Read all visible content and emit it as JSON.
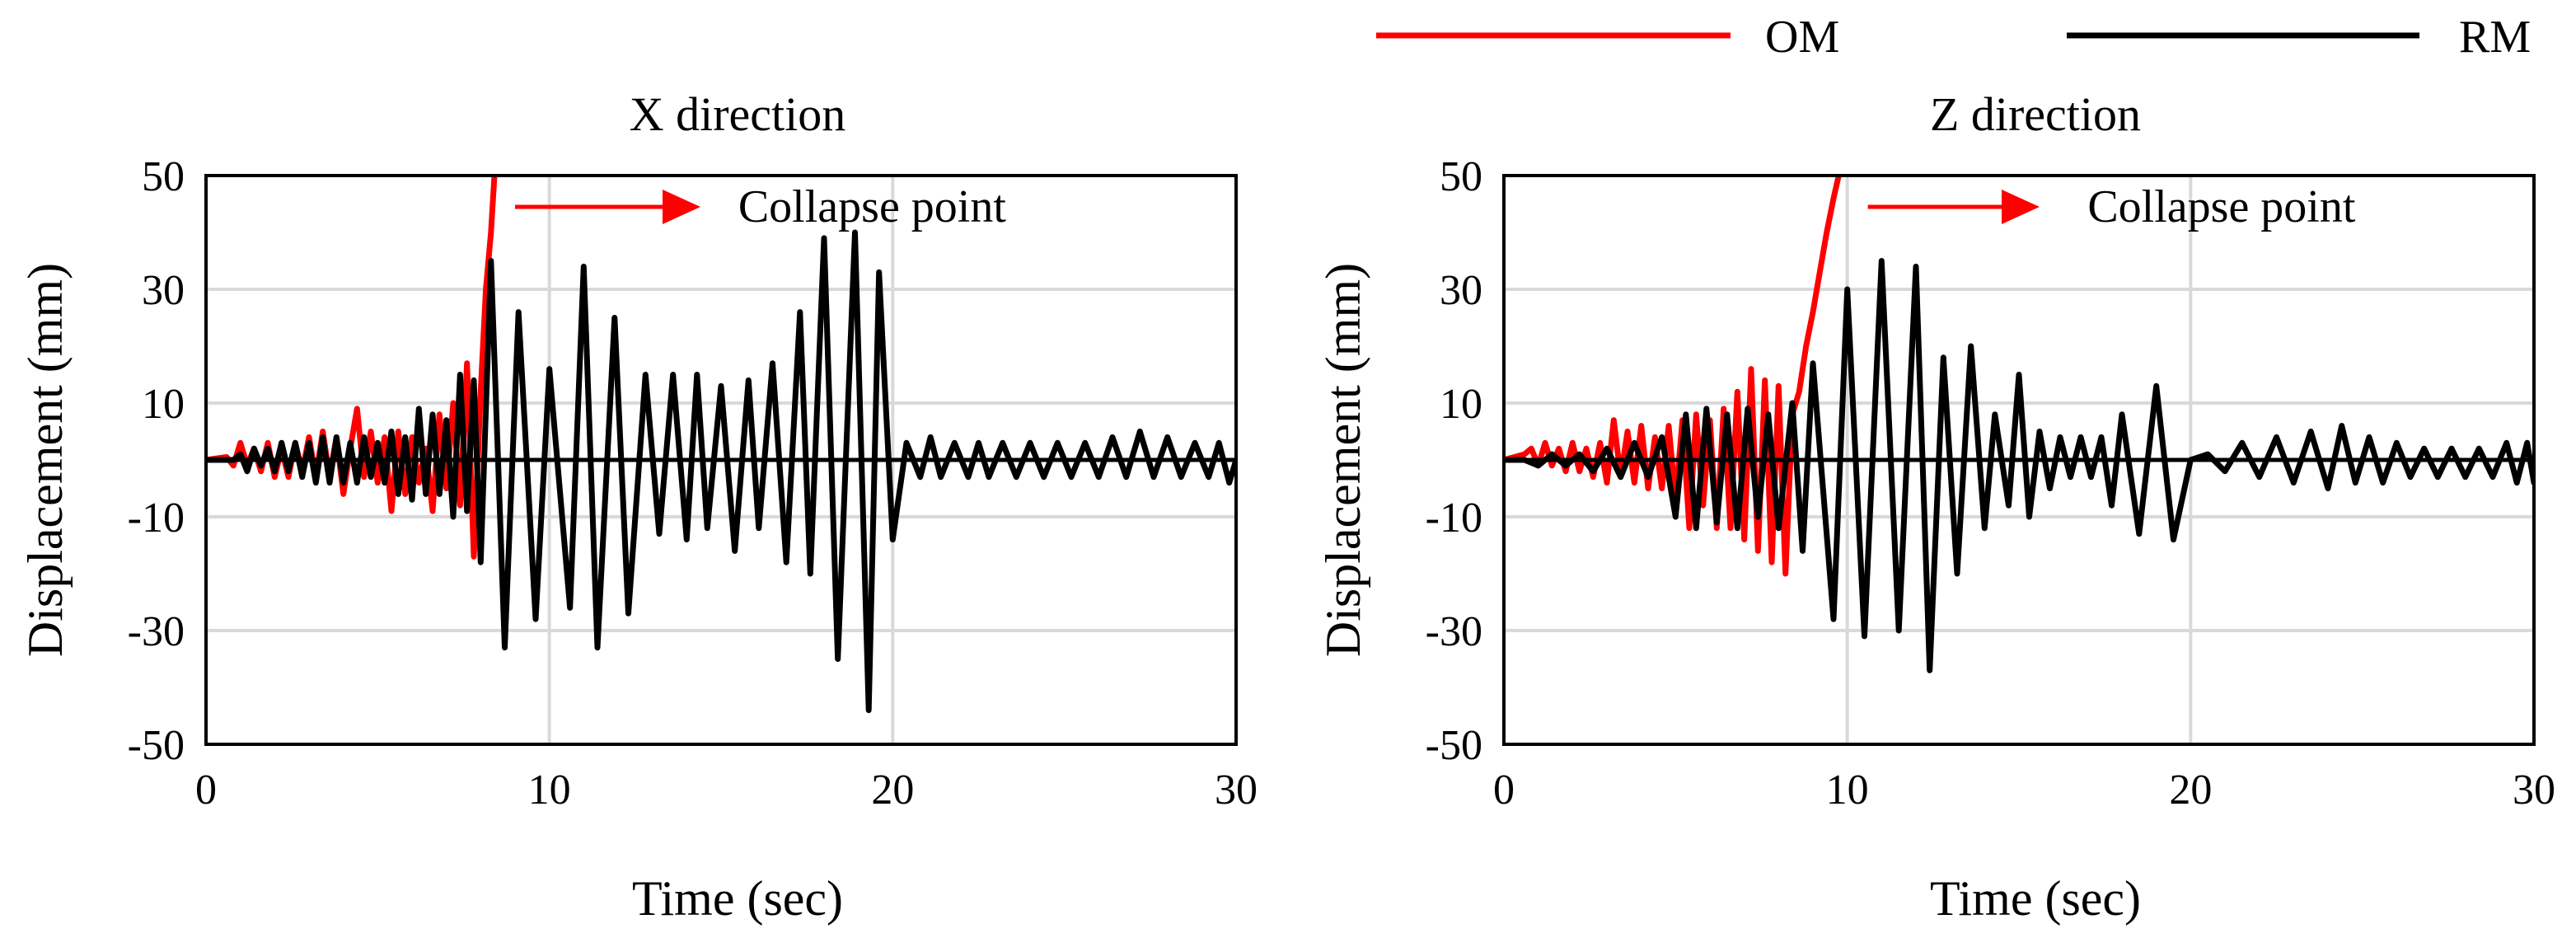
{
  "legend": {
    "items": [
      {
        "label": "OM",
        "color": "#ff0000"
      },
      {
        "label": "RM",
        "color": "#000000"
      }
    ]
  },
  "chart_data": [
    {
      "type": "line",
      "title": "X direction",
      "xlabel": "Time (sec)",
      "ylabel": "Displacement (mm)",
      "xlim": [
        0,
        30
      ],
      "ylim": [
        -50,
        50
      ],
      "xticks": [
        0,
        10,
        20,
        30
      ],
      "yticks": [
        -50,
        -30,
        -10,
        10,
        30,
        50
      ],
      "grid": true,
      "annotation": {
        "text": "Collapse point",
        "arrow_color": "#ff0000",
        "arrow_from": [
          9.0,
          44.5
        ],
        "arrow_to": [
          14.4,
          44.5
        ],
        "text_at": [
          15.5,
          44.5
        ]
      },
      "series": [
        {
          "name": "OM",
          "color": "#ff0000",
          "x": [
            0,
            0.6,
            0.8,
            1.0,
            1.2,
            1.4,
            1.6,
            1.8,
            2.0,
            2.2,
            2.4,
            2.6,
            2.8,
            3.0,
            3.2,
            3.4,
            3.6,
            3.8,
            4.0,
            4.2,
            4.4,
            4.6,
            4.8,
            5.0,
            5.2,
            5.4,
            5.6,
            5.8,
            6.0,
            6.2,
            6.4,
            6.6,
            6.8,
            7.0,
            7.2,
            7.4,
            7.6,
            7.8,
            8.0,
            8.15,
            8.3,
            8.4
          ],
          "y": [
            0,
            0.5,
            -1,
            3,
            -1,
            2,
            -2,
            3,
            -3,
            2,
            -3,
            3,
            -2,
            4,
            -3,
            5,
            -3,
            4,
            -6,
            2,
            9,
            -3,
            5,
            -4,
            4,
            -9,
            5,
            -6,
            4,
            -4,
            2,
            -9,
            8,
            -5,
            10,
            -8,
            17,
            -17,
            12,
            30,
            40,
            50
          ]
        },
        {
          "name": "RM",
          "color": "#000000",
          "x": [
            0,
            0.8,
            1.0,
            1.2,
            1.4,
            1.6,
            1.8,
            2.0,
            2.2,
            2.4,
            2.6,
            2.8,
            3.0,
            3.2,
            3.4,
            3.6,
            3.8,
            4.0,
            4.2,
            4.4,
            4.6,
            4.8,
            5.0,
            5.2,
            5.4,
            5.6,
            5.8,
            6.0,
            6.2,
            6.4,
            6.6,
            6.8,
            7.0,
            7.2,
            7.4,
            7.6,
            7.8,
            8.0,
            8.3,
            8.7,
            9.1,
            9.6,
            10.0,
            10.6,
            11.0,
            11.4,
            11.9,
            12.3,
            12.8,
            13.2,
            13.6,
            14.0,
            14.3,
            14.6,
            15.0,
            15.4,
            15.8,
            16.1,
            16.5,
            16.9,
            17.3,
            17.6,
            18.0,
            18.4,
            18.9,
            19.3,
            19.6,
            20.0,
            20.4,
            20.8,
            21.1,
            21.4,
            21.8,
            22.2,
            22.5,
            22.8,
            23.2,
            23.6,
            24.0,
            24.4,
            24.8,
            25.2,
            25.6,
            26.0,
            26.4,
            26.8,
            27.2,
            27.6,
            28.0,
            28.4,
            28.8,
            29.2,
            29.5,
            29.8,
            30.0
          ],
          "y": [
            0,
            0,
            1,
            -2,
            2,
            -1,
            2,
            -2,
            3,
            -2,
            3,
            -3,
            3,
            -4,
            4,
            -4,
            4,
            -4,
            3,
            -4,
            4,
            -3,
            3,
            -4,
            5,
            -6,
            4,
            -7,
            9,
            -6,
            8,
            -6,
            7,
            -10,
            15,
            -9,
            14,
            -18,
            35,
            -33,
            26,
            -28,
            16,
            -26,
            34,
            -33,
            25,
            -27,
            15,
            -13,
            15,
            -14,
            15,
            -12,
            13,
            -16,
            14,
            -12,
            17,
            -18,
            26,
            -20,
            39,
            -35,
            40,
            -44,
            33,
            -14,
            3,
            -3,
            4,
            -3,
            3,
            -3,
            3,
            -3,
            3,
            -3,
            3,
            -3,
            3,
            -3,
            3,
            -3,
            4,
            -3,
            5,
            -3,
            4,
            -3,
            3,
            -3,
            3,
            -4,
            0
          ]
        }
      ]
    },
    {
      "type": "line",
      "title": "Z direction",
      "xlabel": "Time (sec)",
      "ylabel": "Displacement (mm)",
      "xlim": [
        0,
        30
      ],
      "ylim": [
        -50,
        50
      ],
      "xticks": [
        0,
        10,
        20,
        30
      ],
      "yticks": [
        -50,
        -30,
        -10,
        10,
        30,
        50
      ],
      "grid": true,
      "annotation": {
        "text": "Collapse point",
        "arrow_color": "#ff0000",
        "arrow_from": [
          10.6,
          44.5
        ],
        "arrow_to": [
          15.6,
          44.5
        ],
        "text_at": [
          17.0,
          44.5
        ]
      },
      "series": [
        {
          "name": "OM",
          "color": "#ff0000",
          "x": [
            0,
            0.6,
            0.8,
            1.0,
            1.2,
            1.4,
            1.6,
            1.8,
            2.0,
            2.2,
            2.4,
            2.6,
            2.8,
            3.0,
            3.2,
            3.4,
            3.6,
            3.8,
            4.0,
            4.2,
            4.4,
            4.6,
            4.8,
            5.0,
            5.2,
            5.4,
            5.6,
            5.8,
            6.0,
            6.2,
            6.4,
            6.6,
            6.8,
            7.0,
            7.2,
            7.4,
            7.6,
            7.8,
            8.0,
            8.2,
            8.4,
            8.6,
            8.8,
            9.0,
            9.2,
            9.4,
            9.6,
            9.75
          ],
          "y": [
            0,
            1,
            2,
            -1,
            3,
            -1,
            2,
            -2,
            3,
            -2,
            2,
            -3,
            3,
            -4,
            7,
            -3,
            5,
            -4,
            6,
            -5,
            4,
            -5,
            6,
            -7,
            7,
            -12,
            8,
            -8,
            7,
            -12,
            9,
            -12,
            12,
            -14,
            16,
            -16,
            14,
            -18,
            13,
            -20,
            8,
            12,
            20,
            26,
            33,
            40,
            46,
            50
          ]
        },
        {
          "name": "RM",
          "color": "#000000",
          "x": [
            0,
            0.6,
            1.0,
            1.4,
            1.8,
            2.2,
            2.6,
            3.0,
            3.4,
            3.8,
            4.2,
            4.6,
            5.0,
            5.3,
            5.6,
            5.9,
            6.2,
            6.5,
            6.8,
            7.1,
            7.4,
            7.7,
            8.0,
            8.4,
            8.7,
            9.0,
            9.6,
            10.0,
            10.5,
            11.0,
            11.5,
            12.0,
            12.4,
            12.8,
            13.2,
            13.6,
            14.0,
            14.3,
            14.7,
            15.0,
            15.3,
            15.6,
            15.9,
            16.2,
            16.5,
            16.8,
            17.1,
            17.4,
            17.7,
            18.0,
            18.5,
            19.0,
            19.5,
            20.0,
            20.5,
            21.0,
            21.5,
            22.0,
            22.5,
            23.0,
            23.5,
            24.0,
            24.4,
            24.8,
            25.2,
            25.6,
            26.0,
            26.4,
            26.8,
            27.2,
            27.6,
            28.0,
            28.4,
            28.8,
            29.2,
            29.5,
            29.8,
            30.0
          ],
          "y": [
            0,
            0,
            -1,
            1,
            -1,
            1,
            -2,
            2,
            -3,
            3,
            -3,
            4,
            -10,
            8,
            -12,
            9,
            -11,
            8,
            -12,
            9,
            -10,
            8,
            -12,
            10,
            -16,
            17,
            -28,
            30,
            -31,
            35,
            -30,
            34,
            -37,
            18,
            -20,
            20,
            -12,
            8,
            -8,
            15,
            -10,
            5,
            -5,
            4,
            -3,
            4,
            -3,
            4,
            -8,
            8,
            -13,
            13,
            -14,
            0,
            1,
            -2,
            3,
            -3,
            4,
            -4,
            5,
            -5,
            6,
            -4,
            4,
            -4,
            3,
            -3,
            2,
            -3,
            2,
            -3,
            2,
            -3,
            3,
            -4,
            3,
            -4
          ]
        }
      ]
    }
  ]
}
